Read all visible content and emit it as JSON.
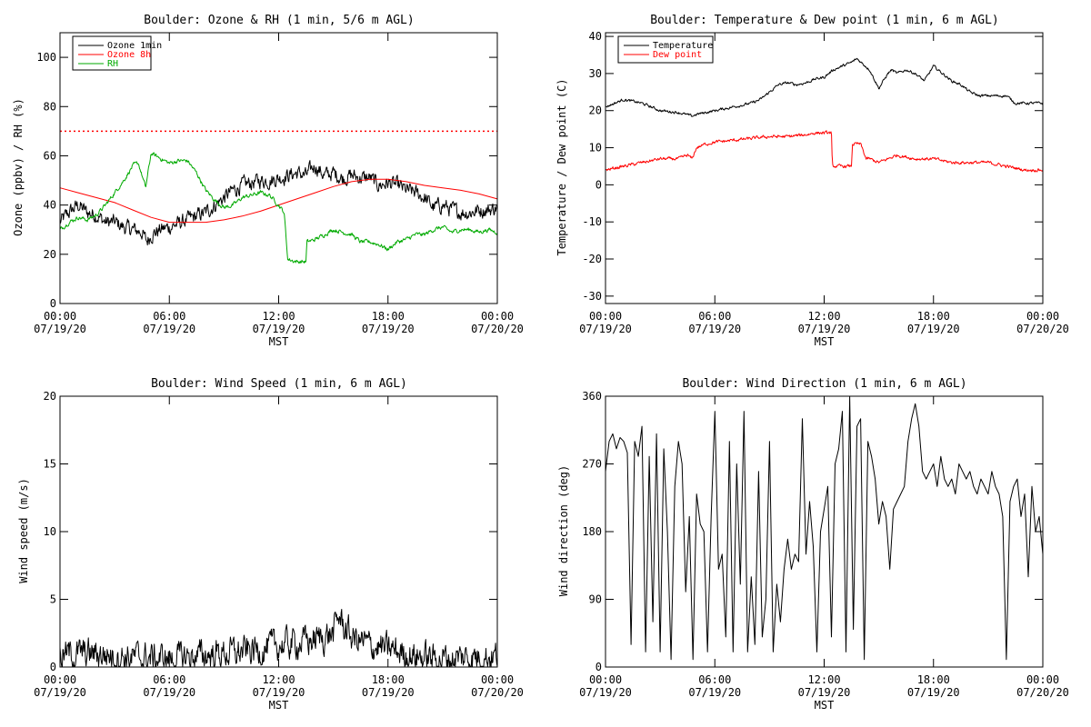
{
  "colors": {
    "black": "#000000",
    "red": "#ff0000",
    "green": "#00aa00",
    "background": "#ffffff"
  },
  "x_axis": {
    "label": "MST",
    "ticks": [
      {
        "x": 0,
        "time": "00:00",
        "date": "07/19/20"
      },
      {
        "x": 6,
        "time": "06:00",
        "date": "07/19/20"
      },
      {
        "x": 12,
        "time": "12:00",
        "date": "07/19/20"
      },
      {
        "x": 18,
        "time": "18:00",
        "date": "07/19/20"
      },
      {
        "x": 24,
        "time": "00:00",
        "date": "07/20/20"
      }
    ]
  },
  "chart_data": [
    {
      "id": "ozone",
      "type": "line",
      "title": "Boulder: Ozone & RH (1 min, 5/6 m AGL)",
      "ylabel": "Ozone (ppbv) / RH (%)",
      "xlabel": "MST",
      "xlim": [
        0,
        24
      ],
      "ylim": [
        0,
        110
      ],
      "yticks": [
        0,
        20,
        40,
        60,
        80,
        100
      ],
      "legend": "top-left",
      "reference_line": {
        "y": 70,
        "color": "#ff0000",
        "style": "dotted"
      },
      "series": [
        {
          "name": "Ozone 1min",
          "color": "#000000",
          "noise": 2.5,
          "x": [
            0,
            0.5,
            1,
            1.5,
            2,
            2.5,
            3,
            3.5,
            4,
            4.5,
            4.75,
            5,
            5.5,
            6,
            7,
            8,
            8.5,
            9,
            9.5,
            10,
            10.5,
            11,
            11.5,
            12,
            12.5,
            13,
            13.5,
            14,
            14.5,
            15,
            15.5,
            16,
            16.5,
            17,
            17.5,
            18,
            18.5,
            19,
            19.5,
            20,
            20.5,
            21,
            21.5,
            22,
            22.5,
            23,
            23.5,
            24
          ],
          "y": [
            33,
            37,
            40,
            37,
            36,
            33,
            33,
            31,
            30,
            29,
            25,
            28,
            30,
            31,
            34,
            37,
            40,
            43,
            46,
            48,
            49,
            50,
            50,
            51,
            52,
            53,
            52,
            56,
            52,
            53,
            51,
            52,
            51,
            51,
            48,
            49,
            48,
            46,
            45,
            43,
            39,
            40,
            38,
            37,
            37,
            38,
            38,
            39
          ]
        },
        {
          "name": "Ozone 8h",
          "color": "#ff0000",
          "noise": 0,
          "x": [
            0,
            1,
            2,
            3,
            4,
            5,
            6,
            7,
            8,
            9,
            10,
            11,
            12,
            13,
            14,
            15,
            16,
            17,
            18,
            19,
            20,
            21,
            22,
            23,
            24
          ],
          "y": [
            47,
            45,
            43,
            41,
            38,
            35,
            33,
            33,
            33,
            34,
            35.5,
            37.5,
            40,
            42.5,
            45,
            47.5,
            49.5,
            50.5,
            50.5,
            49.5,
            48,
            47,
            46,
            44.5,
            42.5
          ]
        },
        {
          "name": "RH",
          "color": "#00aa00",
          "noise": 0.7,
          "x": [
            0,
            0.5,
            1,
            1.5,
            2,
            2.5,
            3,
            3.5,
            4,
            4.3,
            4.7,
            5,
            5.5,
            6,
            6.5,
            7,
            7.5,
            8,
            8.5,
            9,
            9.5,
            10,
            10.5,
            11,
            11.5,
            12,
            12.3,
            12.5,
            13,
            13.5,
            13.55,
            14,
            14.5,
            15,
            15.5,
            16,
            16.5,
            17,
            17.5,
            18,
            18.5,
            19,
            19.5,
            20,
            20.5,
            21,
            21.5,
            22,
            22.5,
            23,
            23.5,
            24
          ],
          "y": [
            30,
            33,
            35,
            34,
            36,
            40,
            45,
            50,
            56,
            57,
            47,
            61,
            59,
            57,
            58,
            58,
            53,
            46,
            42,
            39,
            40,
            43,
            44,
            45,
            44,
            40,
            37,
            18,
            17,
            17,
            25,
            26,
            28,
            30,
            29,
            28,
            25,
            25,
            24,
            22,
            25,
            26,
            28,
            28,
            30,
            31,
            29,
            30,
            30,
            29,
            30,
            29
          ]
        }
      ]
    },
    {
      "id": "temp",
      "type": "line",
      "title": "Boulder: Temperature & Dew point (1 min, 6 m AGL)",
      "ylabel": "Temperature / Dew point (C)",
      "xlabel": "MST",
      "xlim": [
        0,
        24
      ],
      "ylim": [
        -32,
        41
      ],
      "yticks": [
        -30,
        -20,
        -10,
        0,
        10,
        20,
        30,
        40
      ],
      "legend": "top-left",
      "series": [
        {
          "name": "Temperature",
          "color": "#000000",
          "noise": 0.3,
          "x": [
            0,
            1,
            2,
            3,
            4,
            4.75,
            5,
            5.5,
            6,
            7,
            8,
            8.5,
            9,
            9.5,
            10,
            10.5,
            11,
            11.5,
            12,
            12.5,
            13,
            13.5,
            13.8,
            14.5,
            15,
            15.5,
            15.7,
            16,
            16.5,
            17,
            17.5,
            18,
            18.5,
            19,
            19.5,
            20,
            20.5,
            21,
            21.5,
            22,
            22.5,
            23,
            23.5,
            24
          ],
          "y": [
            21,
            23,
            22,
            20,
            19.5,
            18.5,
            19,
            19.5,
            20,
            21,
            22,
            23,
            25,
            27,
            27.5,
            27,
            27.5,
            28.5,
            29,
            31,
            32,
            33,
            34,
            31,
            26,
            30,
            31,
            30,
            31,
            30,
            28,
            32,
            30,
            28,
            27,
            25,
            24,
            24,
            24,
            24,
            22,
            22,
            22,
            22
          ]
        },
        {
          "name": "Dew point",
          "color": "#ff0000",
          "noise": 0.35,
          "x": [
            0,
            1,
            2,
            3,
            4,
            4.5,
            4.75,
            5,
            5.5,
            6,
            7,
            8,
            9,
            10,
            11,
            11.5,
            12,
            12.4,
            12.45,
            13,
            13.5,
            13.55,
            14,
            14.3,
            14.5,
            15,
            15.5,
            16,
            17,
            18,
            19,
            20,
            21,
            22,
            23,
            24
          ],
          "y": [
            4,
            5,
            6,
            7,
            7,
            8,
            7,
            10,
            11,
            11.5,
            12,
            12.5,
            13,
            13,
            13.5,
            14,
            14,
            14,
            5,
            5,
            5,
            11,
            11,
            7,
            7,
            6,
            7,
            8,
            7,
            7,
            6,
            6,
            6,
            5,
            4,
            4
          ]
        }
      ]
    },
    {
      "id": "wspd",
      "type": "line",
      "title": "Boulder: Wind Speed (1 min, 6 m AGL)",
      "ylabel": "Wind speed (m/s)",
      "xlabel": "MST",
      "xlim": [
        0,
        24
      ],
      "ylim": [
        0,
        20
      ],
      "yticks": [
        0,
        5,
        10,
        15,
        20
      ],
      "series": [
        {
          "color": "#000000",
          "noise": 0.9,
          "x": [
            0,
            2,
            4,
            6,
            8,
            10,
            11,
            12,
            13,
            14,
            15,
            15.3,
            15.6,
            16,
            17,
            18,
            19,
            20,
            21,
            22,
            23,
            24
          ],
          "y": [
            0.9,
            1.0,
            0.7,
            0.6,
            0.9,
            1.1,
            1.3,
            1.6,
            1.8,
            2.0,
            2.5,
            3.8,
            3.0,
            2.2,
            1.6,
            1.3,
            1.0,
            0.7,
            0.6,
            0.7,
            0.8,
            0.8
          ]
        }
      ]
    },
    {
      "id": "wdir",
      "type": "line",
      "title": "Boulder: Wind Direction (1 min, 6 m AGL)",
      "ylabel": "Wind direction (deg)",
      "xlabel": "MST",
      "xlim": [
        0,
        24
      ],
      "ylim": [
        0,
        360
      ],
      "yticks": [
        0,
        90,
        180,
        270,
        360
      ],
      "series": [
        {
          "color": "#000000",
          "noise": 0,
          "x": [
            0,
            0.2,
            0.4,
            0.6,
            0.8,
            1,
            1.2,
            1.4,
            1.6,
            1.8,
            2,
            2.2,
            2.4,
            2.6,
            2.8,
            3,
            3.2,
            3.4,
            3.6,
            3.8,
            4,
            4.2,
            4.4,
            4.6,
            4.8,
            5,
            5.2,
            5.4,
            5.6,
            5.8,
            6,
            6.2,
            6.4,
            6.6,
            6.8,
            7,
            7.2,
            7.4,
            7.6,
            7.8,
            8,
            8.2,
            8.4,
            8.6,
            8.8,
            9,
            9.2,
            9.4,
            9.6,
            9.8,
            10,
            10.2,
            10.4,
            10.6,
            10.8,
            11,
            11.2,
            11.4,
            11.6,
            11.8,
            12,
            12.2,
            12.4,
            12.6,
            12.8,
            13,
            13.2,
            13.4,
            13.6,
            13.8,
            14,
            14.2,
            14.4,
            14.6,
            14.8,
            15,
            15.2,
            15.4,
            15.6,
            15.8,
            16,
            16.2,
            16.4,
            16.6,
            16.8,
            17,
            17.2,
            17.4,
            17.6,
            17.8,
            18,
            18.2,
            18.4,
            18.6,
            18.8,
            19,
            19.2,
            19.4,
            19.6,
            19.8,
            20,
            20.2,
            20.4,
            20.6,
            20.8,
            21,
            21.2,
            21.4,
            21.6,
            21.8,
            22,
            22.2,
            22.4,
            22.6,
            22.8,
            23,
            23.2,
            23.4,
            23.6,
            23.8,
            24
          ],
          "y": [
            260,
            300,
            310,
            290,
            305,
            300,
            285,
            30,
            300,
            280,
            320,
            20,
            280,
            60,
            310,
            20,
            290,
            180,
            10,
            240,
            300,
            270,
            100,
            200,
            10,
            230,
            190,
            180,
            20,
            200,
            340,
            130,
            150,
            40,
            300,
            20,
            270,
            110,
            340,
            20,
            120,
            30,
            260,
            40,
            90,
            300,
            20,
            110,
            60,
            130,
            170,
            130,
            150,
            140,
            330,
            150,
            220,
            160,
            20,
            180,
            210,
            240,
            40,
            270,
            290,
            340,
            20,
            360,
            50,
            320,
            330,
            10,
            300,
            280,
            250,
            190,
            220,
            200,
            130,
            210,
            220,
            230,
            240,
            300,
            330,
            350,
            320,
            260,
            250,
            260,
            270,
            240,
            280,
            250,
            240,
            250,
            230,
            270,
            260,
            250,
            260,
            240,
            230,
            250,
            240,
            230,
            260,
            240,
            230,
            200,
            10,
            220,
            240,
            250,
            200,
            230,
            120,
            240,
            180,
            200,
            150
          ]
        }
      ]
    }
  ]
}
